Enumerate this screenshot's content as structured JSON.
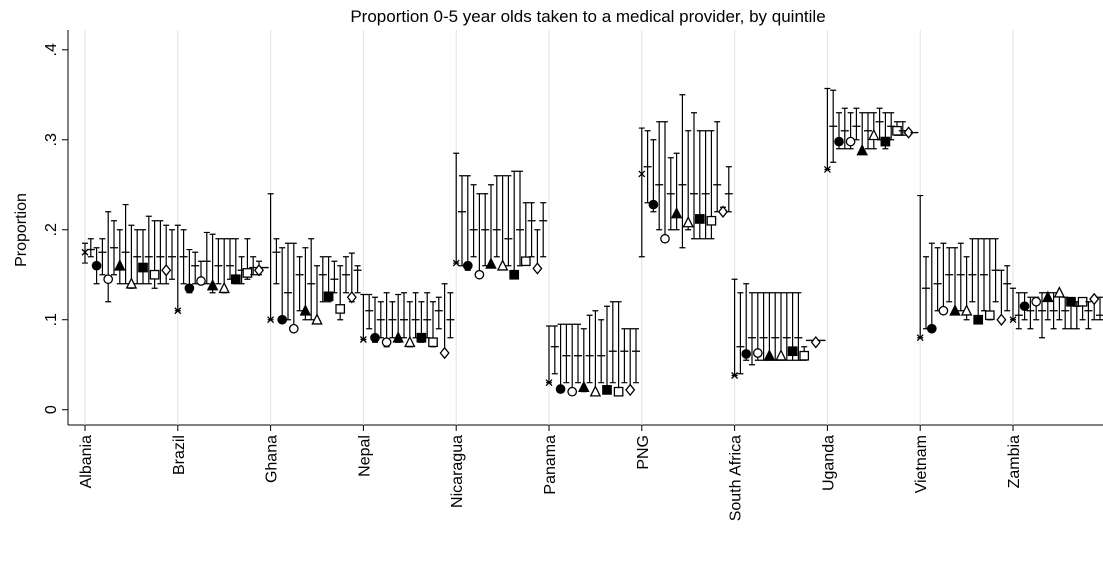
{
  "chart_data": {
    "type": "dot-ci",
    "title": "Proportion 0-5 year olds taken to a medical provider, by quintile",
    "y_label": "Proportion",
    "ylim": [
      -0.017,
      0.422
    ],
    "yticks": [
      {
        "value": 0,
        "label": "0"
      },
      {
        "value": 0.1,
        "label": ".1"
      },
      {
        "value": 0.2,
        "label": ".2"
      },
      {
        "value": 0.3,
        "label": ".3"
      },
      {
        "value": 0.4,
        "label": ".4"
      }
    ],
    "grid": true,
    "color": "#000000",
    "markers": [
      "x",
      "dash",
      "circle-filled",
      "dash",
      "circle-open",
      "dash",
      "triangle-filled",
      "dash",
      "triangle-open",
      "dash",
      "square-filled",
      "dash",
      "square-open",
      "dash",
      "diamond-open",
      "dash"
    ],
    "groups": [
      {
        "label": "Albania",
        "points": [
          [
            0.175,
            0.163,
            0.185
          ],
          [
            0.178,
            0.17,
            0.19
          ],
          [
            0.16,
            0.14,
            0.18
          ],
          [
            0.175,
            0.15,
            0.19
          ],
          [
            0.145,
            0.12,
            0.22
          ],
          [
            0.18,
            0.15,
            0.21
          ],
          [
            0.16,
            0.14,
            0.2
          ],
          [
            0.175,
            0.14,
            0.228
          ],
          [
            0.14,
            0.135,
            0.205
          ],
          [
            0.17,
            0.14,
            0.2
          ],
          [
            0.158,
            0.14,
            0.2
          ],
          [
            0.17,
            0.14,
            0.215
          ],
          [
            0.15,
            0.135,
            0.21
          ],
          [
            0.17,
            0.14,
            0.21
          ],
          [
            0.155,
            0.14,
            0.205
          ],
          [
            0.17,
            0.145,
            0.2
          ]
        ]
      },
      {
        "label": "Brazil",
        "points": [
          [
            0.11,
            0.11,
            0.205
          ],
          [
            0.17,
            0.14,
            0.2
          ],
          [
            0.135,
            0.13,
            0.178
          ],
          [
            0.16,
            0.14,
            0.175
          ],
          [
            0.143,
            0.14,
            0.165
          ],
          [
            0.165,
            0.14,
            0.197
          ],
          [
            0.138,
            0.13,
            0.195
          ],
          [
            0.16,
            0.14,
            0.19
          ],
          [
            0.135,
            0.13,
            0.19
          ],
          [
            0.16,
            0.145,
            0.19
          ],
          [
            0.145,
            0.14,
            0.19
          ],
          [
            0.155,
            0.14,
            0.17
          ],
          [
            0.152,
            0.145,
            0.19
          ],
          [
            0.158,
            0.15,
            0.17
          ],
          [
            0.155,
            0.15,
            0.165
          ],
          [
            0.158,
            0.158,
            0.158
          ]
        ]
      },
      {
        "label": "Ghana",
        "points": [
          [
            0.1,
            0.1,
            0.24
          ],
          [
            0.175,
            0.14,
            0.19
          ],
          [
            0.1,
            0.1,
            0.18
          ],
          [
            0.13,
            0.1,
            0.185
          ],
          [
            0.09,
            0.09,
            0.185
          ],
          [
            0.15,
            0.11,
            0.17
          ],
          [
            0.11,
            0.1,
            0.18
          ],
          [
            0.14,
            0.1,
            0.19
          ],
          [
            0.1,
            0.1,
            0.16
          ],
          [
            0.15,
            0.12,
            0.17
          ],
          [
            0.126,
            0.12,
            0.17
          ],
          [
            0.145,
            0.13,
            0.165
          ],
          [
            0.112,
            0.1,
            0.16
          ],
          [
            0.15,
            0.13,
            0.17
          ],
          [
            0.125,
            0.12,
            0.174
          ],
          [
            0.155,
            0.13,
            0.16
          ]
        ]
      },
      {
        "label": "Nepal",
        "points": [
          [
            0.078,
            0.078,
            0.128
          ],
          [
            0.11,
            0.09,
            0.128
          ],
          [
            0.08,
            0.075,
            0.125
          ],
          [
            0.1,
            0.08,
            0.12
          ],
          [
            0.075,
            0.07,
            0.13
          ],
          [
            0.1,
            0.08,
            0.12
          ],
          [
            0.08,
            0.075,
            0.128
          ],
          [
            0.1,
            0.08,
            0.13
          ],
          [
            0.075,
            0.07,
            0.12
          ],
          [
            0.1,
            0.08,
            0.13
          ],
          [
            0.08,
            0.075,
            0.12
          ],
          [
            0.1,
            0.08,
            0.13
          ],
          [
            0.075,
            0.07,
            0.12
          ],
          [
            0.11,
            0.09,
            0.125
          ],
          [
            0.063,
            0.063,
            0.14
          ],
          [
            0.1,
            0.08,
            0.13
          ]
        ]
      },
      {
        "label": "Nicaragua",
        "points": [
          [
            0.163,
            0.163,
            0.285
          ],
          [
            0.22,
            0.16,
            0.26
          ],
          [
            0.16,
            0.155,
            0.26
          ],
          [
            0.2,
            0.17,
            0.25
          ],
          [
            0.15,
            0.15,
            0.24
          ],
          [
            0.2,
            0.16,
            0.24
          ],
          [
            0.162,
            0.16,
            0.25
          ],
          [
            0.2,
            0.17,
            0.26
          ],
          [
            0.16,
            0.16,
            0.26
          ],
          [
            0.19,
            0.16,
            0.26
          ],
          [
            0.15,
            0.15,
            0.265
          ],
          [
            0.2,
            0.16,
            0.265
          ],
          [
            0.165,
            0.165,
            0.23
          ],
          [
            0.21,
            0.17,
            0.23
          ],
          [
            0.157,
            0.157,
            0.2
          ],
          [
            0.21,
            0.17,
            0.23
          ]
        ]
      },
      {
        "label": "Panama",
        "points": [
          [
            0.03,
            0.03,
            0.093
          ],
          [
            0.07,
            0.04,
            0.093
          ],
          [
            0.023,
            0.02,
            0.095
          ],
          [
            0.06,
            0.03,
            0.095
          ],
          [
            0.02,
            0.02,
            0.095
          ],
          [
            0.06,
            0.03,
            0.095
          ],
          [
            0.025,
            0.02,
            0.09
          ],
          [
            0.06,
            0.03,
            0.105
          ],
          [
            0.02,
            0.02,
            0.11
          ],
          [
            0.06,
            0.03,
            0.1
          ],
          [
            0.022,
            0.02,
            0.115
          ],
          [
            0.065,
            0.03,
            0.12
          ],
          [
            0.02,
            0.02,
            0.12
          ],
          [
            0.065,
            0.03,
            0.09
          ],
          [
            0.022,
            0.022,
            0.09
          ],
          [
            0.065,
            0.03,
            0.09
          ]
        ]
      },
      {
        "label": "PNG",
        "points": [
          [
            0.262,
            0.17,
            0.313
          ],
          [
            0.27,
            0.23,
            0.31
          ],
          [
            0.228,
            0.22,
            0.3
          ],
          [
            0.25,
            0.2,
            0.32
          ],
          [
            0.19,
            0.19,
            0.32
          ],
          [
            0.24,
            0.2,
            0.28
          ],
          [
            0.218,
            0.2,
            0.285
          ],
          [
            0.25,
            0.18,
            0.35
          ],
          [
            0.208,
            0.2,
            0.31
          ],
          [
            0.24,
            0.19,
            0.33
          ],
          [
            0.212,
            0.19,
            0.31
          ],
          [
            0.24,
            0.19,
            0.31
          ],
          [
            0.21,
            0.19,
            0.31
          ],
          [
            0.25,
            0.22,
            0.32
          ],
          [
            0.22,
            0.22,
            0.225
          ],
          [
            0.24,
            0.22,
            0.27
          ]
        ]
      },
      {
        "label": "South Africa",
        "points": [
          [
            0.038,
            0.038,
            0.145
          ],
          [
            0.07,
            0.04,
            0.13
          ],
          [
            0.062,
            0.055,
            0.14
          ],
          [
            0.08,
            0.05,
            0.13
          ],
          [
            0.063,
            0.055,
            0.13
          ],
          [
            0.08,
            0.055,
            0.13
          ],
          [
            0.06,
            0.055,
            0.13
          ],
          [
            0.08,
            0.055,
            0.13
          ],
          [
            0.06,
            0.055,
            0.13
          ],
          [
            0.08,
            0.055,
            0.13
          ],
          [
            0.065,
            0.055,
            0.13
          ],
          [
            0.08,
            0.055,
            0.13
          ],
          [
            0.06,
            0.055,
            0.07
          ],
          [
            0.077,
            0.077,
            0.077
          ],
          [
            0.075,
            0.075,
            0.075
          ],
          [
            0.077,
            0.077,
            0.077
          ]
        ]
      },
      {
        "label": "Uganda",
        "points": [
          [
            0.267,
            0.267,
            0.357
          ],
          [
            0.315,
            0.275,
            0.355
          ],
          [
            0.298,
            0.29,
            0.33
          ],
          [
            0.31,
            0.29,
            0.335
          ],
          [
            0.298,
            0.29,
            0.33
          ],
          [
            0.315,
            0.3,
            0.335
          ],
          [
            0.288,
            0.285,
            0.33
          ],
          [
            0.31,
            0.29,
            0.33
          ],
          [
            0.305,
            0.29,
            0.33
          ],
          [
            0.32,
            0.3,
            0.335
          ],
          [
            0.298,
            0.29,
            0.33
          ],
          [
            0.315,
            0.3,
            0.33
          ],
          [
            0.31,
            0.305,
            0.32
          ],
          [
            0.31,
            0.305,
            0.32
          ],
          [
            0.308,
            0.308,
            0.308
          ],
          [
            0.308,
            0.308,
            0.308
          ]
        ]
      },
      {
        "label": "Vietnam",
        "points": [
          [
            0.08,
            0.08,
            0.238
          ],
          [
            0.135,
            0.09,
            0.17
          ],
          [
            0.09,
            0.09,
            0.185
          ],
          [
            0.14,
            0.11,
            0.18
          ],
          [
            0.11,
            0.11,
            0.185
          ],
          [
            0.15,
            0.12,
            0.18
          ],
          [
            0.11,
            0.11,
            0.18
          ],
          [
            0.15,
            0.11,
            0.185
          ],
          [
            0.11,
            0.1,
            0.17
          ],
          [
            0.15,
            0.12,
            0.19
          ],
          [
            0.1,
            0.1,
            0.19
          ],
          [
            0.15,
            0.11,
            0.19
          ],
          [
            0.105,
            0.1,
            0.19
          ],
          [
            0.155,
            0.12,
            0.19
          ],
          [
            0.1,
            0.1,
            0.155
          ],
          [
            0.14,
            0.11,
            0.16
          ]
        ]
      },
      {
        "label": "Zambia",
        "points": [
          [
            0.1,
            0.1,
            0.135
          ],
          [
            0.105,
            0.09,
            0.13
          ],
          [
            0.115,
            0.1,
            0.13
          ],
          [
            0.11,
            0.09,
            0.125
          ],
          [
            0.12,
            0.1,
            0.125
          ],
          [
            0.11,
            0.08,
            0.13
          ],
          [
            0.125,
            0.1,
            0.13
          ],
          [
            0.11,
            0.09,
            0.13
          ],
          [
            0.13,
            0.1,
            0.13
          ],
          [
            0.11,
            0.09,
            0.125
          ],
          [
            0.12,
            0.09,
            0.12
          ],
          [
            0.115,
            0.09,
            0.12
          ],
          [
            0.12,
            0.1,
            0.12
          ],
          [
            0.11,
            0.09,
            0.12
          ],
          [
            0.123,
            0.1,
            0.125
          ],
          [
            0.105,
            0.1,
            0.125
          ]
        ]
      }
    ]
  }
}
